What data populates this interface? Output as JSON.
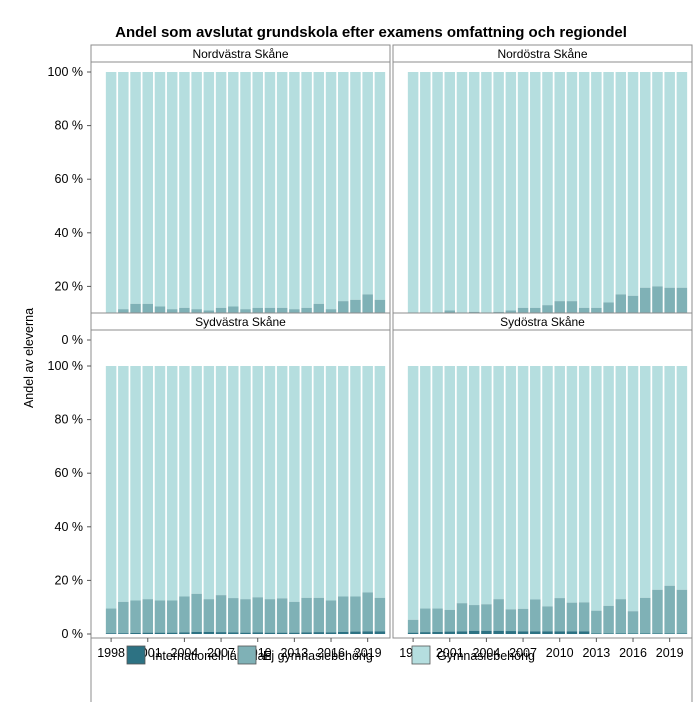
{
  "chart_data": {
    "type": "bar",
    "stacked": true,
    "title": "Andel som avslutat grundskola efter examens omfattning och regiondel",
    "ylabel": "Andel av eleverna",
    "ylim": [
      0,
      100
    ],
    "yticks": [
      "0 %",
      "20 %",
      "40 %",
      "60 %",
      "80 %",
      "100 %"
    ],
    "xticks": [
      "1998",
      "2001",
      "2004",
      "2007",
      "2010",
      "2013",
      "2016",
      "2019"
    ],
    "years": [
      1998,
      1999,
      2000,
      2001,
      2002,
      2003,
      2004,
      2005,
      2006,
      2007,
      2008,
      2009,
      2010,
      2011,
      2012,
      2013,
      2014,
      2015,
      2016,
      2017,
      2018,
      2019,
      2020
    ],
    "legend": {
      "position": "bottom",
      "items": [
        {
          "label": "Internationell läroplan",
          "color": "#2d7283"
        },
        {
          "label": "Ej gymnasiebehörig",
          "color": "#7fb1b6"
        },
        {
          "label": "Gymnasiebehörig",
          "color": "#b5dedf"
        }
      ]
    },
    "colors": {
      "internationell": "#2d7283",
      "ej": "#7fb1b6",
      "gymn": "#b5dedf",
      "frame": "#8c8c8c",
      "strip_bg": "#ffffff"
    },
    "panels": [
      {
        "name": "Nordvästra Skåne",
        "series": [
          {
            "name": "Internationell läroplan",
            "values": [
              0.2,
              0.2,
              0.2,
              0.2,
              0.2,
              0.2,
              0.2,
              0.2,
              0.2,
              0.2,
              0.2,
              0.2,
              0.2,
              0.2,
              0.2,
              0.2,
              0.2,
              0.2,
              0.2,
              0.2,
              0.8,
              0.5,
              0.5
            ]
          },
          {
            "name": "Ej gymnasiebehörig",
            "values": [
              9.3,
              11.3,
              13.3,
              13.3,
              12.3,
              11.3,
              11.8,
              11.3,
              10.8,
              11.8,
              12.3,
              11.3,
              11.8,
              11.8,
              11.8,
              11.3,
              11.8,
              13.3,
              11.3,
              14.3,
              14.2,
              16.5,
              14.5
            ]
          }
        ]
      },
      {
        "name": "Nordöstra Skåne",
        "series": [
          {
            "name": "Internationell läroplan",
            "values": [
              0.2,
              0.2,
              0.2,
              0.2,
              0.2,
              0.2,
              0.2,
              0.2,
              0.2,
              0.2,
              0.2,
              0.2,
              0.2,
              0.2,
              0.2,
              0.2,
              0.2,
              0.2,
              0.2,
              0.2,
              0.2,
              0.2,
              0.2
            ]
          },
          {
            "name": "Ej gymnasiebehörig",
            "values": [
              6.8,
              8.8,
              9.8,
              10.8,
              9.8,
              10.3,
              8.8,
              10.3,
              10.8,
              11.8,
              11.8,
              12.8,
              14.3,
              14.3,
              11.8,
              11.8,
              13.8,
              16.8,
              16.3,
              19.3,
              19.8,
              19.3,
              19.3
            ]
          }
        ]
      },
      {
        "name": "Sydvästra Skåne",
        "series": [
          {
            "name": "Internationell läroplan",
            "values": [
              0.3,
              0.3,
              0.4,
              0.5,
              0.5,
              0.5,
              0.6,
              0.8,
              0.8,
              0.7,
              0.6,
              0.5,
              0.6,
              0.5,
              0.5,
              0.5,
              0.6,
              0.7,
              0.6,
              0.8,
              0.9,
              1.0,
              1.0
            ]
          },
          {
            "name": "Ej gymnasiebehörig",
            "values": [
              9.2,
              11.7,
              12.1,
              12.5,
              12.0,
              12.0,
              13.4,
              14.2,
              12.2,
              13.8,
              12.8,
              12.5,
              13.1,
              12.5,
              12.8,
              11.5,
              12.9,
              12.8,
              11.9,
              13.2,
              13.1,
              14.5,
              12.5
            ]
          }
        ]
      },
      {
        "name": "Sydöstra Skåne",
        "series": [
          {
            "name": "Internationell läroplan",
            "values": [
              0.5,
              0.7,
              0.8,
              0.9,
              1.0,
              1.2,
              1.2,
              1.2,
              1.1,
              1.0,
              1.0,
              1.0,
              1.0,
              1.0,
              1.0,
              0.2,
              0.2,
              0.2,
              0.2,
              0.2,
              0.2,
              0.2,
              0.2
            ]
          },
          {
            "name": "Ej gymnasiebehörig",
            "values": [
              4.8,
              8.8,
              8.7,
              8.1,
              10.5,
              9.6,
              9.9,
              11.8,
              8.1,
              8.4,
              11.9,
              9.3,
              12.4,
              10.7,
              10.8,
              8.5,
              10.3,
              12.8,
              8.3,
              13.3,
              16.3,
              17.8,
              16.3
            ]
          }
        ]
      }
    ]
  }
}
